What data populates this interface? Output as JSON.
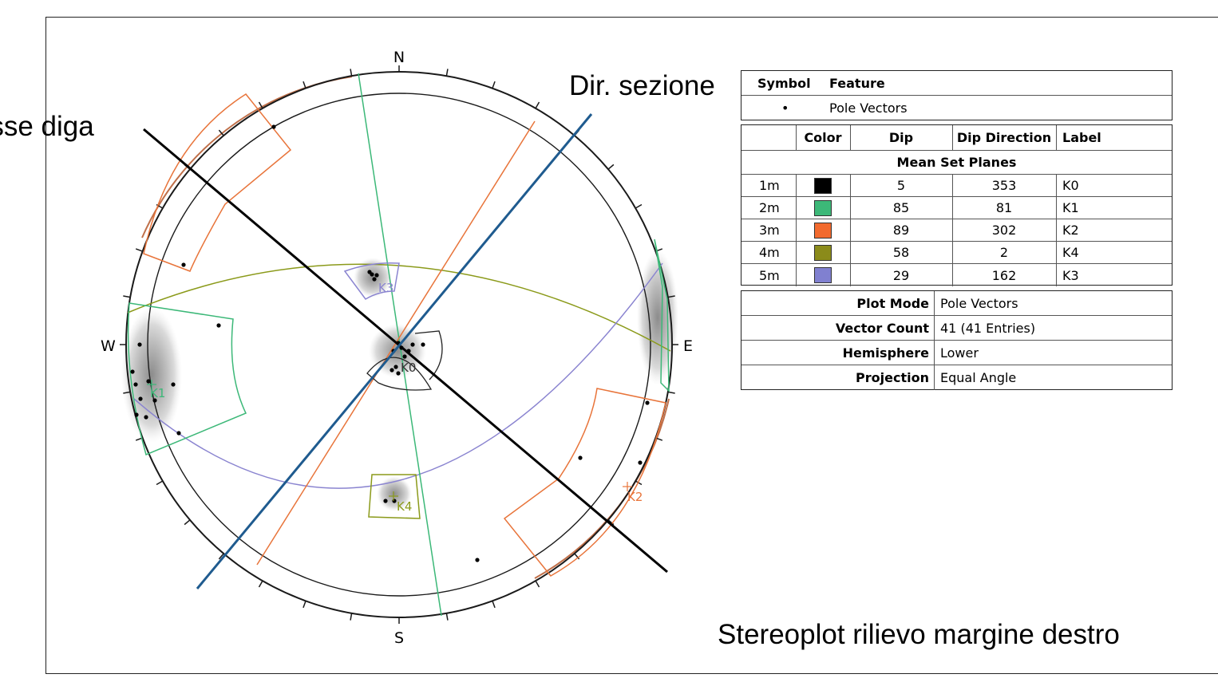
{
  "labels": {
    "asse_diga": "Asse diga",
    "dir_sezione": "Dir. sezione",
    "caption": "Stereoplot rilievo margine destro"
  },
  "compass": {
    "n": "N",
    "s": "S",
    "e": "E",
    "w": "W"
  },
  "set_labels": {
    "k0": "K0",
    "k1": "K1",
    "k2": "K2",
    "k3": "K3",
    "k4": "K4"
  },
  "legend": {
    "symbol_header": "Symbol",
    "feature_header": "Feature",
    "symbol_glyph": "•",
    "feature_value": "Pole Vectors"
  },
  "sets_table": {
    "headers": [
      "Color",
      "Dip",
      "Dip Direction",
      "Label"
    ],
    "section_title": "Mean Set Planes",
    "rows": [
      {
        "id": "1m",
        "color": "#000000",
        "dip": "5",
        "dip_direction": "353",
        "label": "K0"
      },
      {
        "id": "2m",
        "color": "#3cb878",
        "dip": "85",
        "dip_direction": "81",
        "label": "K1"
      },
      {
        "id": "3m",
        "color": "#f26a2e",
        "dip": "89",
        "dip_direction": "302",
        "label": "K2"
      },
      {
        "id": "4m",
        "color": "#8b8b1a",
        "dip": "58",
        "dip_direction": "2",
        "label": "K4"
      },
      {
        "id": "5m",
        "color": "#8080d0",
        "dip": "29",
        "dip_direction": "162",
        "label": "K3"
      }
    ]
  },
  "info_table": {
    "rows": [
      {
        "key": "Plot Mode",
        "value": "Pole Vectors"
      },
      {
        "key": "Vector Count",
        "value": "41 (41 Entries)"
      },
      {
        "key": "Hemisphere",
        "value": "Lower"
      },
      {
        "key": "Projection",
        "value": "Equal Angle"
      }
    ]
  },
  "colors": {
    "k0": "#000000",
    "k1": "#3cb878",
    "k2": "#e8743a",
    "k3": "#8a84d0",
    "k4": "#8b9a1a",
    "axis_line": "#000000",
    "section_line": "#1f5b8f",
    "outer_rim": "#c0704a"
  }
}
